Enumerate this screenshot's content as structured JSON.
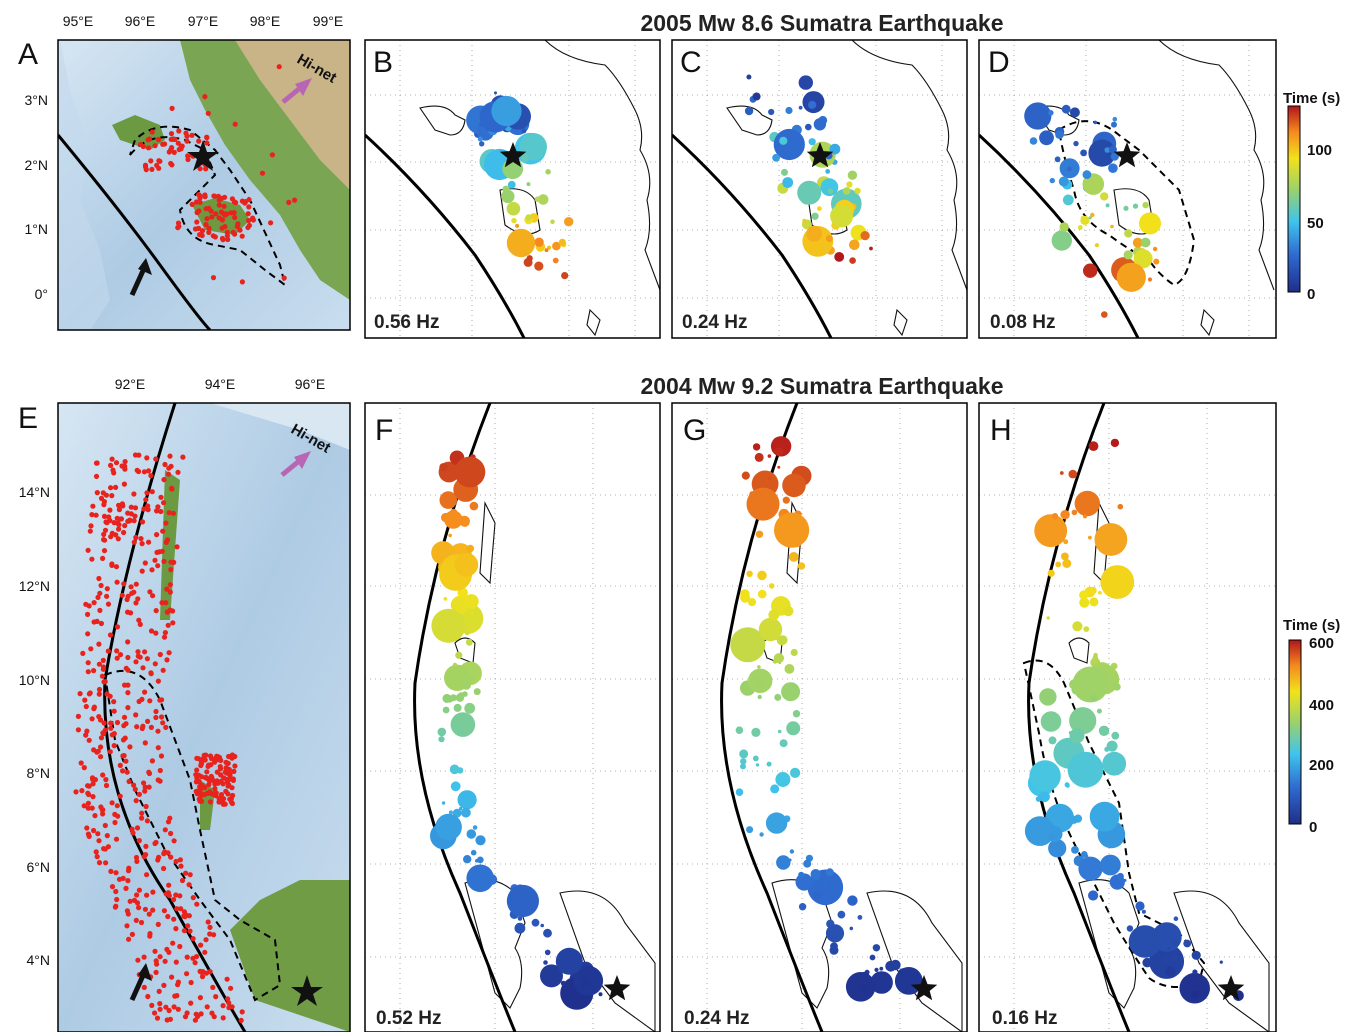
{
  "headers": {
    "top": "2005 Mw 8.6 Sumatra Earthquake",
    "bottom": "2004 Mw 9.2 Sumatra Earthquake"
  },
  "panels": [
    {
      "id": "A",
      "letter": "A",
      "kind": "map"
    },
    {
      "id": "B",
      "letter": "B",
      "freq": "0.56 Hz"
    },
    {
      "id": "C",
      "letter": "C",
      "freq": "0.24 Hz"
    },
    {
      "id": "D",
      "letter": "D",
      "freq": "0.08 Hz"
    },
    {
      "id": "E",
      "letter": "E",
      "kind": "map"
    },
    {
      "id": "F",
      "letter": "F",
      "freq": "0.52 Hz"
    },
    {
      "id": "G",
      "letter": "G",
      "freq": "0.24 Hz"
    },
    {
      "id": "H",
      "letter": "H",
      "freq": "0.16 Hz"
    }
  ],
  "mapA": {
    "lon_ticks": [
      "95°E",
      "96°E",
      "97°E",
      "98°E",
      "99°E"
    ],
    "lat_ticks": [
      "3°N",
      "2°N",
      "1°N",
      "0°"
    ],
    "hinet": "Hi-net"
  },
  "mapE": {
    "lon_ticks": [
      "92°E",
      "94°E",
      "96°E"
    ],
    "lat_ticks": [
      "14°N",
      "12°N",
      "10°N",
      "8°N",
      "6°N",
      "4°N"
    ],
    "hinet": "Hi-net"
  },
  "colorbars": [
    {
      "title": "Time (s)",
      "ticks": [
        "0",
        "50",
        "100"
      ],
      "max": 125
    },
    {
      "title": "Time (s)",
      "ticks": [
        "0",
        "200",
        "400",
        "600"
      ],
      "max": 600
    }
  ],
  "colors": {
    "ocean": "#b8d4ea",
    "land": "#5e8f3c",
    "red_dots": "#e8221c",
    "hinet_arrow": "#b866b3"
  }
}
